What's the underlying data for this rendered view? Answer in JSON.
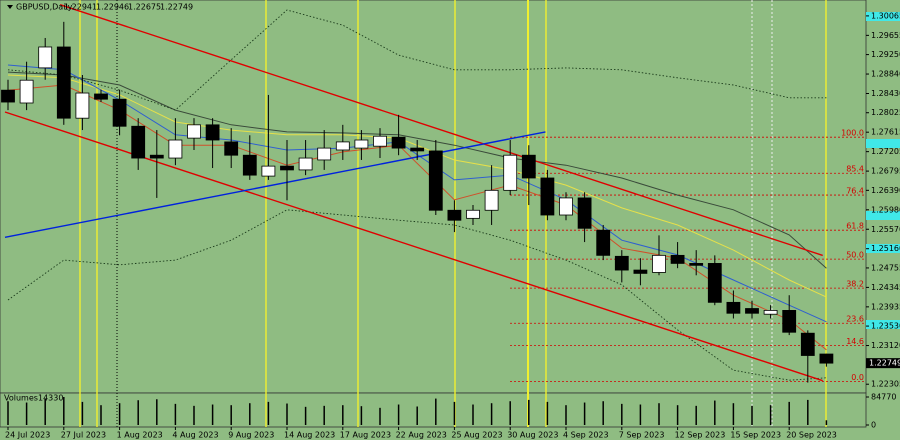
{
  "chart_data": {
    "type": "candlestick",
    "symbol": "GBPUSD,Daily",
    "volume_title": "Volumes",
    "categories": [
      "24 Jul 2023",
      null,
      null,
      "27 Jul 2023",
      null,
      null,
      "1 Aug 2023",
      null,
      null,
      "4 Aug 2023",
      null,
      null,
      "9 Aug 2023",
      null,
      null,
      "14 Aug 2023",
      null,
      null,
      "17 Aug 2023",
      null,
      null,
      "22 Aug 2023",
      null,
      null,
      "25 Aug 2023",
      null,
      null,
      "30 Aug 2023",
      null,
      null,
      "4 Sep 2023",
      null,
      null,
      "7 Sep 2023",
      null,
      null,
      "12 Sep 2023",
      null,
      null,
      "15 Sep 2023",
      null,
      null,
      "20 Sep 2023",
      null,
      null
    ],
    "open": [
      1.285,
      1.2823,
      1.2897,
      1.2941,
      1.2791,
      1.2842,
      1.2831,
      1.2774,
      1.2713,
      1.2707,
      1.2749,
      1.2777,
      1.2741,
      1.2713,
      1.2669,
      1.269,
      1.2682,
      1.2703,
      1.2724,
      1.2728,
      1.2732,
      1.2751,
      1.2728,
      1.2722,
      1.2597,
      1.258,
      1.2597,
      1.2639,
      1.2713,
      1.2665,
      1.2587,
      1.2623,
      1.2555,
      1.25,
      1.2471,
      1.2466,
      1.2502,
      1.2485,
      1.2485,
      1.2403,
      1.239,
      1.2378,
      1.2386,
      1.2338,
      1.22941
    ],
    "high": [
      1.2872,
      1.291,
      1.296,
      1.2994,
      1.2882,
      1.2851,
      1.2851,
      1.2791,
      1.2766,
      1.2791,
      1.2791,
      1.2791,
      1.277,
      1.2755,
      1.284,
      1.2745,
      1.2745,
      1.2766,
      1.2777,
      1.2766,
      1.277,
      1.2798,
      1.2745,
      1.2745,
      1.2618,
      1.2608,
      1.2692,
      1.2745,
      1.2734,
      1.2682,
      1.2635,
      1.2635,
      1.2566,
      1.2513,
      1.2496,
      1.2544,
      1.253,
      1.2513,
      1.2502,
      1.2428,
      1.2407,
      1.2397,
      1.2418,
      1.2344,
      1.22946
    ],
    "low": [
      1.2808,
      1.2808,
      1.2872,
      1.2777,
      1.2766,
      1.2825,
      1.2755,
      1.2682,
      1.2623,
      1.2692,
      1.2724,
      1.2686,
      1.2686,
      1.2661,
      1.2661,
      1.2618,
      1.2671,
      1.2682,
      1.2703,
      1.2703,
      1.2707,
      1.2713,
      1.2703,
      1.2587,
      1.2551,
      1.2566,
      1.2566,
      1.2629,
      1.2608,
      1.2576,
      1.2576,
      1.253,
      1.2492,
      1.2445,
      1.2439,
      1.246,
      1.2475,
      1.246,
      1.2397,
      1.2369,
      1.2369,
      1.2369,
      1.2334,
      1.2234,
      1.22675
    ],
    "close": [
      1.2825,
      1.2871,
      1.2941,
      1.2791,
      1.2844,
      1.2831,
      1.2774,
      1.2707,
      1.2707,
      1.2745,
      1.2777,
      1.2745,
      1.2713,
      1.2671,
      1.269,
      1.2682,
      1.2707,
      1.2728,
      1.2741,
      1.2745,
      1.2753,
      1.2728,
      1.2722,
      1.2597,
      1.2576,
      1.2597,
      1.2639,
      1.2713,
      1.2665,
      1.2587,
      1.2623,
      1.2559,
      1.2502,
      1.2471,
      1.2464,
      1.2502,
      1.2485,
      1.2481,
      1.2403,
      1.238,
      1.238,
      1.2386,
      1.234,
      1.2291,
      1.22749
    ],
    "volume": [
      72000,
      68000,
      80000,
      84770,
      70000,
      60000,
      66000,
      75000,
      78000,
      64000,
      58000,
      62000,
      60000,
      66000,
      70000,
      65000,
      55000,
      58000,
      60000,
      57000,
      52000,
      62000,
      56000,
      80000,
      70000,
      62000,
      66000,
      72000,
      76000,
      70000,
      60000,
      68000,
      72000,
      64000,
      62000,
      66000,
      60000,
      58000,
      74000,
      66000,
      58000,
      60000,
      70000,
      76000,
      14330
    ],
    "ylim": [
      1.2212,
      1.304
    ],
    "yticks": [
      1.30065,
      1.29655,
      {
        "value": 1.2925,
        "label": "1.29250"
      },
      {
        "value": 1.2884,
        "label": "1.28840"
      },
      {
        "value": 1.2843,
        "label": "1.28430"
      },
      1.28025,
      1.27615,
      1.27205,
      1.26795,
      {
        "value": 1.2639,
        "label": "1.26390"
      },
      {
        "value": 1.2598,
        "label": "1.25980"
      },
      {
        "value": 1.2557,
        "label": "1.25570"
      },
      {
        "value": 1.2516,
        "label": "1.25160"
      },
      1.24755,
      1.24345,
      1.23935,
      {
        "value": 1.2353,
        "label": "1.23530"
      },
      {
        "value": 1.2312,
        "label": "1.23120"
      },
      1.22305
    ],
    "volume_ylim": [
      0,
      84770
    ],
    "volume_ticks": [
      84770,
      0
    ],
    "fib_levels": [
      {
        "value": 1.2751,
        "label": "100.0"
      },
      {
        "value": 1.2675,
        "label": "85.4"
      },
      {
        "value": 1.2629,
        "label": "76.4"
      },
      {
        "value": 1.2555,
        "label": "61.8"
      },
      {
        "value": 1.2494,
        "label": "50.0"
      },
      {
        "value": 1.2433,
        "label": "38.2"
      },
      {
        "value": 1.2359,
        "label": "23.6"
      },
      {
        "value": 1.2312,
        "label": "14.6"
      },
      {
        "value": 1.2236,
        "label": "0.0"
      }
    ],
    "indicators": [
      {
        "color": "#3a4a3a",
        "style": "solid",
        "x": [
          0,
          3,
          6,
          9,
          12,
          15,
          18,
          21,
          24,
          27,
          30,
          33,
          36,
          39,
          42,
          44
        ],
        "values": [
          1.2888,
          1.2882,
          1.2861,
          1.2808,
          1.2777,
          1.2762,
          1.276,
          1.2756,
          1.2734,
          1.2707,
          1.2692,
          1.2665,
          1.2629,
          1.2598,
          1.2545,
          1.2475
        ]
      },
      {
        "color": "#e6e04a",
        "style": "solid",
        "x": [
          0,
          3,
          6,
          9,
          12,
          15,
          18,
          21,
          24,
          27,
          30,
          33,
          36,
          39,
          42,
          44
        ],
        "values": [
          1.2882,
          1.2876,
          1.284,
          1.2783,
          1.2766,
          1.2756,
          1.2756,
          1.2749,
          1.2703,
          1.2682,
          1.265,
          1.2602,
          1.2566,
          1.2513,
          1.245,
          1.2414
        ]
      },
      {
        "color": "#2f5fd0",
        "style": "solid",
        "x": [
          0,
          3,
          6,
          9,
          12,
          15,
          18,
          21,
          24,
          27,
          30,
          33,
          36,
          39,
          42,
          44
        ],
        "values": [
          1.2903,
          1.2893,
          1.2829,
          1.2756,
          1.2745,
          1.2724,
          1.2728,
          1.2741,
          1.2661,
          1.2671,
          1.2619,
          1.2534,
          1.2503,
          1.245,
          1.2397,
          1.2362
        ]
      },
      {
        "color": "#d0502a",
        "style": "solid",
        "x": [
          0,
          3,
          6,
          9,
          12,
          15,
          18,
          21,
          24,
          27,
          30,
          33,
          36,
          39,
          42,
          44
        ],
        "values": [
          1.285,
          1.2861,
          1.2808,
          1.2734,
          1.2734,
          1.2692,
          1.272,
          1.2734,
          1.2619,
          1.265,
          1.2608,
          1.2517,
          1.2496,
          1.2418,
          1.2366,
          1.2303
        ]
      },
      {
        "color": "#1a3a1a",
        "style": "dotted",
        "x": [
          0,
          3,
          6,
          9,
          12,
          15,
          18,
          21,
          24,
          27,
          30,
          33,
          36,
          39,
          42,
          44
        ],
        "values": [
          1.2893,
          1.2882,
          1.285,
          1.2808,
          1.2914,
          1.3019,
          1.2987,
          1.2924,
          1.2893,
          1.2893,
          1.2897,
          1.2893,
          1.2876,
          1.2861,
          1.2834,
          1.2834
        ]
      },
      {
        "color": "#1a3a1a",
        "style": "dotted",
        "x": [
          0,
          3,
          6,
          9,
          12,
          15,
          18,
          21,
          24,
          27,
          30,
          33,
          36,
          39,
          42,
          44
        ],
        "values": [
          1.2408,
          1.2492,
          1.2482,
          1.2492,
          1.2534,
          1.2598,
          1.2587,
          1.2576,
          1.2566,
          1.2534,
          1.2492,
          1.244,
          1.2345,
          1.226,
          1.2239,
          1.2244
        ]
      }
    ],
    "trendlines": [
      {
        "color": "#e00000",
        "x": [
          2.8,
          43.8
        ],
        "values": [
          1.303,
          1.2502
        ]
      },
      {
        "color": "#e00000",
        "x": [
          -0.16,
          43.8
        ],
        "values": [
          1.2804,
          1.2238
        ]
      },
      {
        "color": "#0022dd",
        "x": [
          -0.16,
          28.9
        ],
        "values": [
          1.254,
          1.2762
        ]
      }
    ]
  }
}
